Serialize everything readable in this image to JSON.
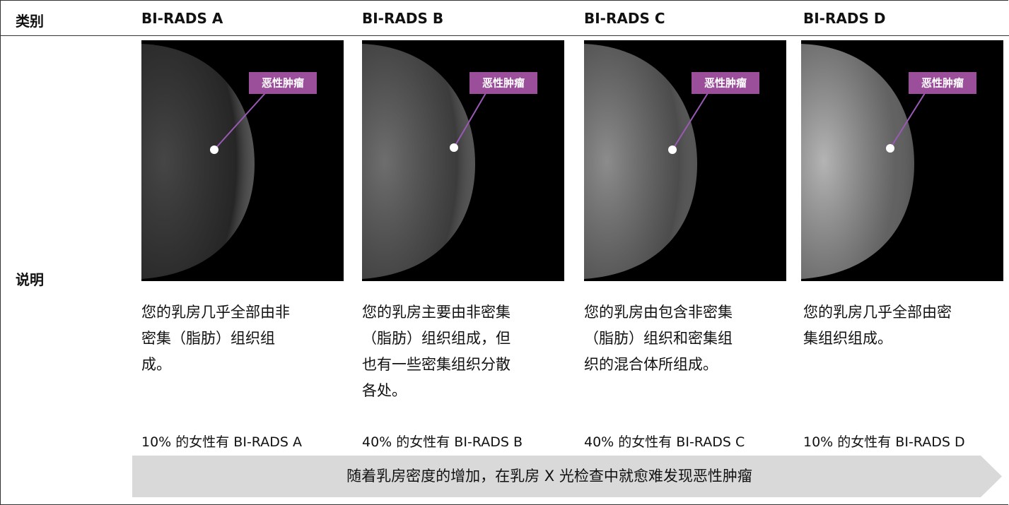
{
  "table": {
    "header": [
      "类别",
      "BI-RADS A",
      "BI-RADS B",
      "BI-RADS C",
      "BI-RADS D"
    ],
    "row_label": "说明",
    "columns": [
      {
        "image_label": "恶性肿瘤",
        "description_lines": [
          "您的乳房几乎全部由非",
          "密集（脂肪）组织组",
          "成。"
        ],
        "stat": "10% 的女性有 BI-RADS A"
      },
      {
        "image_label": "恶性肿瘤",
        "description_lines": [
          "您的乳房主要由非密集",
          "（脂肪）组织组成，但",
          "也有一些密集组织分散",
          "各处。"
        ],
        "stat": "40% 的女性有 BI-RADS B"
      },
      {
        "image_label": "恶性肿瘤",
        "description_lines": [
          "您的乳房由包含非密集",
          "（脂肪）组织和密集组",
          "织的混合体所组成。"
        ],
        "stat": "40% 的女性有 BI-RADS C"
      },
      {
        "image_label": "恶性肿瘤",
        "description_lines": [
          "您的乳房几乎全部由密",
          "集组织组成。"
        ],
        "stat": "10% 的女性有 BI-RADS D"
      }
    ]
  },
  "footer_arrow": "随着乳房密度的增加，在乳房 X 光检查中就愈难发现恶性肿瘤"
}
